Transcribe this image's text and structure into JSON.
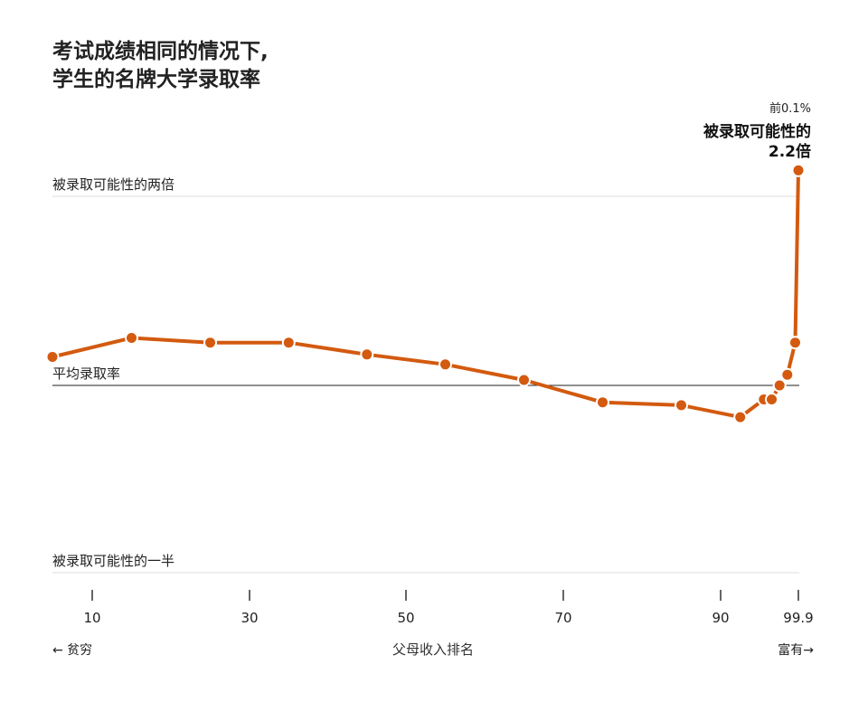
{
  "title_lines": [
    "考试成绩相同的情况下,",
    "学生的名牌大学录取率"
  ],
  "annotation": {
    "top_label": "前0.1%",
    "line1": "被录取可能性的",
    "line2": "2.2倍"
  },
  "colors": {
    "series": "#d35a0f",
    "ref_line": "#222222",
    "grid": "#dddddd",
    "text": "#222222"
  },
  "chart_data": {
    "type": "line",
    "title": "考试成绩相同的情况下, 学生的名牌大学录取率",
    "xlabel": "父母收入排名",
    "x_left_label": "← 贫穷",
    "x_right_label": "富有→",
    "xlim": [
      5,
      99.9
    ],
    "ylim": [
      0.5,
      2.2
    ],
    "ticks": [
      {
        "value": 10,
        "label": "10"
      },
      {
        "value": 30,
        "label": "30"
      },
      {
        "value": 50,
        "label": "50"
      },
      {
        "value": 70,
        "label": "70"
      },
      {
        "value": 90,
        "label": "90"
      },
      {
        "value": 99.9,
        "label": "99.9"
      }
    ],
    "ref_lines": [
      {
        "value": 2,
        "label": "被录取可能性的两倍",
        "style": "grid"
      },
      {
        "value": 1,
        "label": "平均录取率",
        "style": "baseline"
      },
      {
        "value": 0.5,
        "label": "被录取可能性的一半",
        "style": "grid"
      }
    ],
    "series": [
      {
        "x": [
          5,
          15,
          25,
          35,
          45,
          55,
          65,
          75,
          85,
          92.5,
          95.5,
          96.5,
          97.5,
          98.5,
          99.5,
          99.9
        ],
        "y": [
          1.11,
          1.19,
          1.17,
          1.17,
          1.12,
          1.08,
          1.02,
          0.94,
          0.93,
          0.89,
          0.95,
          0.95,
          1.0,
          1.04,
          1.17,
          2.2
        ]
      }
    ]
  }
}
